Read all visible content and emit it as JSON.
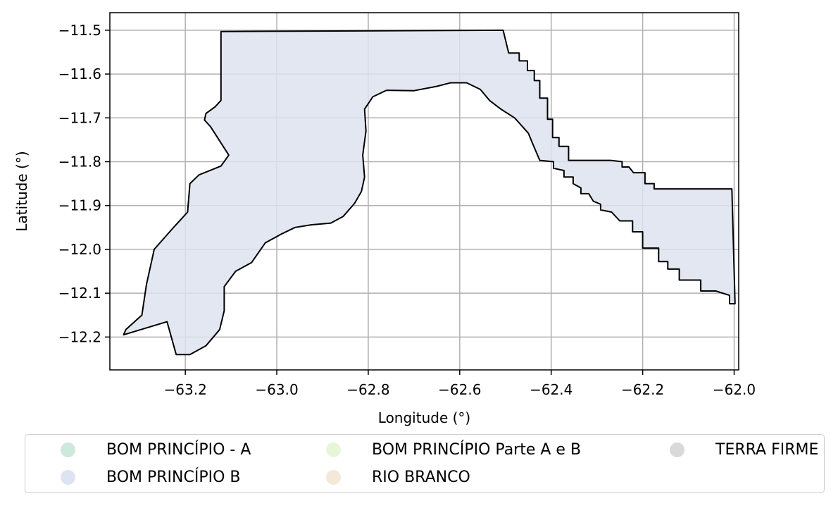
{
  "chart_data": {
    "type": "map",
    "xlabel": "Longitude (°)",
    "ylabel": "Latitude (°)",
    "xlim": [
      -63.365,
      -61.99
    ],
    "ylim": [
      -12.275,
      -11.46
    ],
    "xticks": [
      -63.2,
      -63.0,
      -62.8,
      -62.6,
      -62.4,
      -62.2,
      -62.0
    ],
    "xtick_labels": [
      "−63.2",
      "−63.0",
      "−62.8",
      "−62.6",
      "−62.4",
      "−62.2",
      "−62.0"
    ],
    "yticks": [
      -11.5,
      -11.6,
      -11.7,
      -11.8,
      -11.9,
      -12.0,
      -12.1,
      -12.2
    ],
    "ytick_labels": [
      "−11.5",
      "−11.6",
      "−11.7",
      "−11.8",
      "−11.9",
      "−12.0",
      "−12.1",
      "−12.2"
    ],
    "grid": true,
    "legend_placement": "bottom (below axes), 3 columns",
    "legend": [
      {
        "label": "BOM PRINCÍPIO - A",
        "color": "#cfe8dc"
      },
      {
        "label": "BOM PRINCÍPIO B",
        "color": "#dde3f0"
      },
      {
        "label": "BOM PRINCÍPIO Parte A e B",
        "color": "#e9f5d9"
      },
      {
        "label": "RIO BRANCO",
        "color": "#f4e8d9"
      },
      {
        "label": "TERRA FIRME",
        "color": "#d9d9d9"
      }
    ],
    "boundary": {
      "outline_color": "#000000",
      "fill_color": "#dde3f0",
      "coordinates": [
        [
          -63.122,
          -11.503
        ],
        [
          -62.505,
          -11.5
        ],
        [
          -62.493,
          -11.552
        ],
        [
          -62.47,
          -11.552
        ],
        [
          -62.47,
          -11.57
        ],
        [
          -62.452,
          -11.57
        ],
        [
          -62.452,
          -11.592
        ],
        [
          -62.437,
          -11.592
        ],
        [
          -62.437,
          -11.615
        ],
        [
          -62.425,
          -11.615
        ],
        [
          -62.425,
          -11.655
        ],
        [
          -62.408,
          -11.655
        ],
        [
          -62.408,
          -11.703
        ],
        [
          -62.397,
          -11.703
        ],
        [
          -62.397,
          -11.745
        ],
        [
          -62.383,
          -11.745
        ],
        [
          -62.383,
          -11.765
        ],
        [
          -62.362,
          -11.765
        ],
        [
          -62.362,
          -11.797
        ],
        [
          -62.27,
          -11.797
        ],
        [
          -62.245,
          -11.8
        ],
        [
          -62.245,
          -11.812
        ],
        [
          -62.23,
          -11.812
        ],
        [
          -62.22,
          -11.825
        ],
        [
          -62.195,
          -11.825
        ],
        [
          -62.195,
          -11.85
        ],
        [
          -62.175,
          -11.85
        ],
        [
          -62.175,
          -11.862
        ],
        [
          -62.005,
          -11.862
        ],
        [
          -61.998,
          -12.124
        ],
        [
          -62.01,
          -12.124
        ],
        [
          -62.01,
          -12.105
        ],
        [
          -62.04,
          -12.095
        ],
        [
          -62.073,
          -12.095
        ],
        [
          -62.073,
          -12.07
        ],
        [
          -62.12,
          -12.07
        ],
        [
          -62.12,
          -12.045
        ],
        [
          -62.145,
          -12.045
        ],
        [
          -62.145,
          -12.028
        ],
        [
          -62.165,
          -12.028
        ],
        [
          -62.165,
          -11.997
        ],
        [
          -62.2,
          -11.997
        ],
        [
          -62.2,
          -11.96
        ],
        [
          -62.222,
          -11.96
        ],
        [
          -62.222,
          -11.935
        ],
        [
          -62.25,
          -11.935
        ],
        [
          -62.268,
          -11.915
        ],
        [
          -62.292,
          -11.91
        ],
        [
          -62.292,
          -11.897
        ],
        [
          -62.308,
          -11.89
        ],
        [
          -62.318,
          -11.873
        ],
        [
          -62.335,
          -11.873
        ],
        [
          -62.335,
          -11.86
        ],
        [
          -62.352,
          -11.85
        ],
        [
          -62.352,
          -11.835
        ],
        [
          -62.372,
          -11.835
        ],
        [
          -62.372,
          -11.82
        ],
        [
          -62.395,
          -11.815
        ],
        [
          -62.395,
          -11.8
        ],
        [
          -62.425,
          -11.797
        ],
        [
          -62.44,
          -11.76
        ],
        [
          -62.45,
          -11.735
        ],
        [
          -62.48,
          -11.7
        ],
        [
          -62.51,
          -11.68
        ],
        [
          -62.535,
          -11.66
        ],
        [
          -62.555,
          -11.635
        ],
        [
          -62.585,
          -11.62
        ],
        [
          -62.62,
          -11.62
        ],
        [
          -62.65,
          -11.628
        ],
        [
          -62.7,
          -11.638
        ],
        [
          -62.76,
          -11.637
        ],
        [
          -62.79,
          -11.652
        ],
        [
          -62.808,
          -11.68
        ],
        [
          -62.805,
          -11.73
        ],
        [
          -62.812,
          -11.785
        ],
        [
          -62.808,
          -11.835
        ],
        [
          -62.815,
          -11.868
        ],
        [
          -62.83,
          -11.895
        ],
        [
          -62.855,
          -11.925
        ],
        [
          -62.882,
          -11.94
        ],
        [
          -62.925,
          -11.944
        ],
        [
          -62.96,
          -11.95
        ],
        [
          -62.99,
          -11.965
        ],
        [
          -63.025,
          -11.985
        ],
        [
          -63.055,
          -12.03
        ],
        [
          -63.09,
          -12.05
        ],
        [
          -63.115,
          -12.085
        ],
        [
          -63.115,
          -12.14
        ],
        [
          -63.125,
          -12.183
        ],
        [
          -63.155,
          -12.22
        ],
        [
          -63.19,
          -12.24
        ],
        [
          -63.22,
          -12.24
        ],
        [
          -63.24,
          -12.165
        ],
        [
          -63.335,
          -12.195
        ],
        [
          -63.33,
          -12.183
        ],
        [
          -63.295,
          -12.15
        ],
        [
          -63.285,
          -12.08
        ],
        [
          -63.268,
          -12.0
        ],
        [
          -63.23,
          -11.955
        ],
        [
          -63.195,
          -11.915
        ],
        [
          -63.19,
          -11.85
        ],
        [
          -63.17,
          -11.83
        ],
        [
          -63.122,
          -11.81
        ],
        [
          -63.105,
          -11.785
        ],
        [
          -63.145,
          -11.72
        ],
        [
          -63.158,
          -11.705
        ],
        [
          -63.155,
          -11.69
        ],
        [
          -63.135,
          -11.675
        ],
        [
          -63.122,
          -11.66
        ],
        [
          -63.122,
          -11.503
        ]
      ]
    }
  }
}
